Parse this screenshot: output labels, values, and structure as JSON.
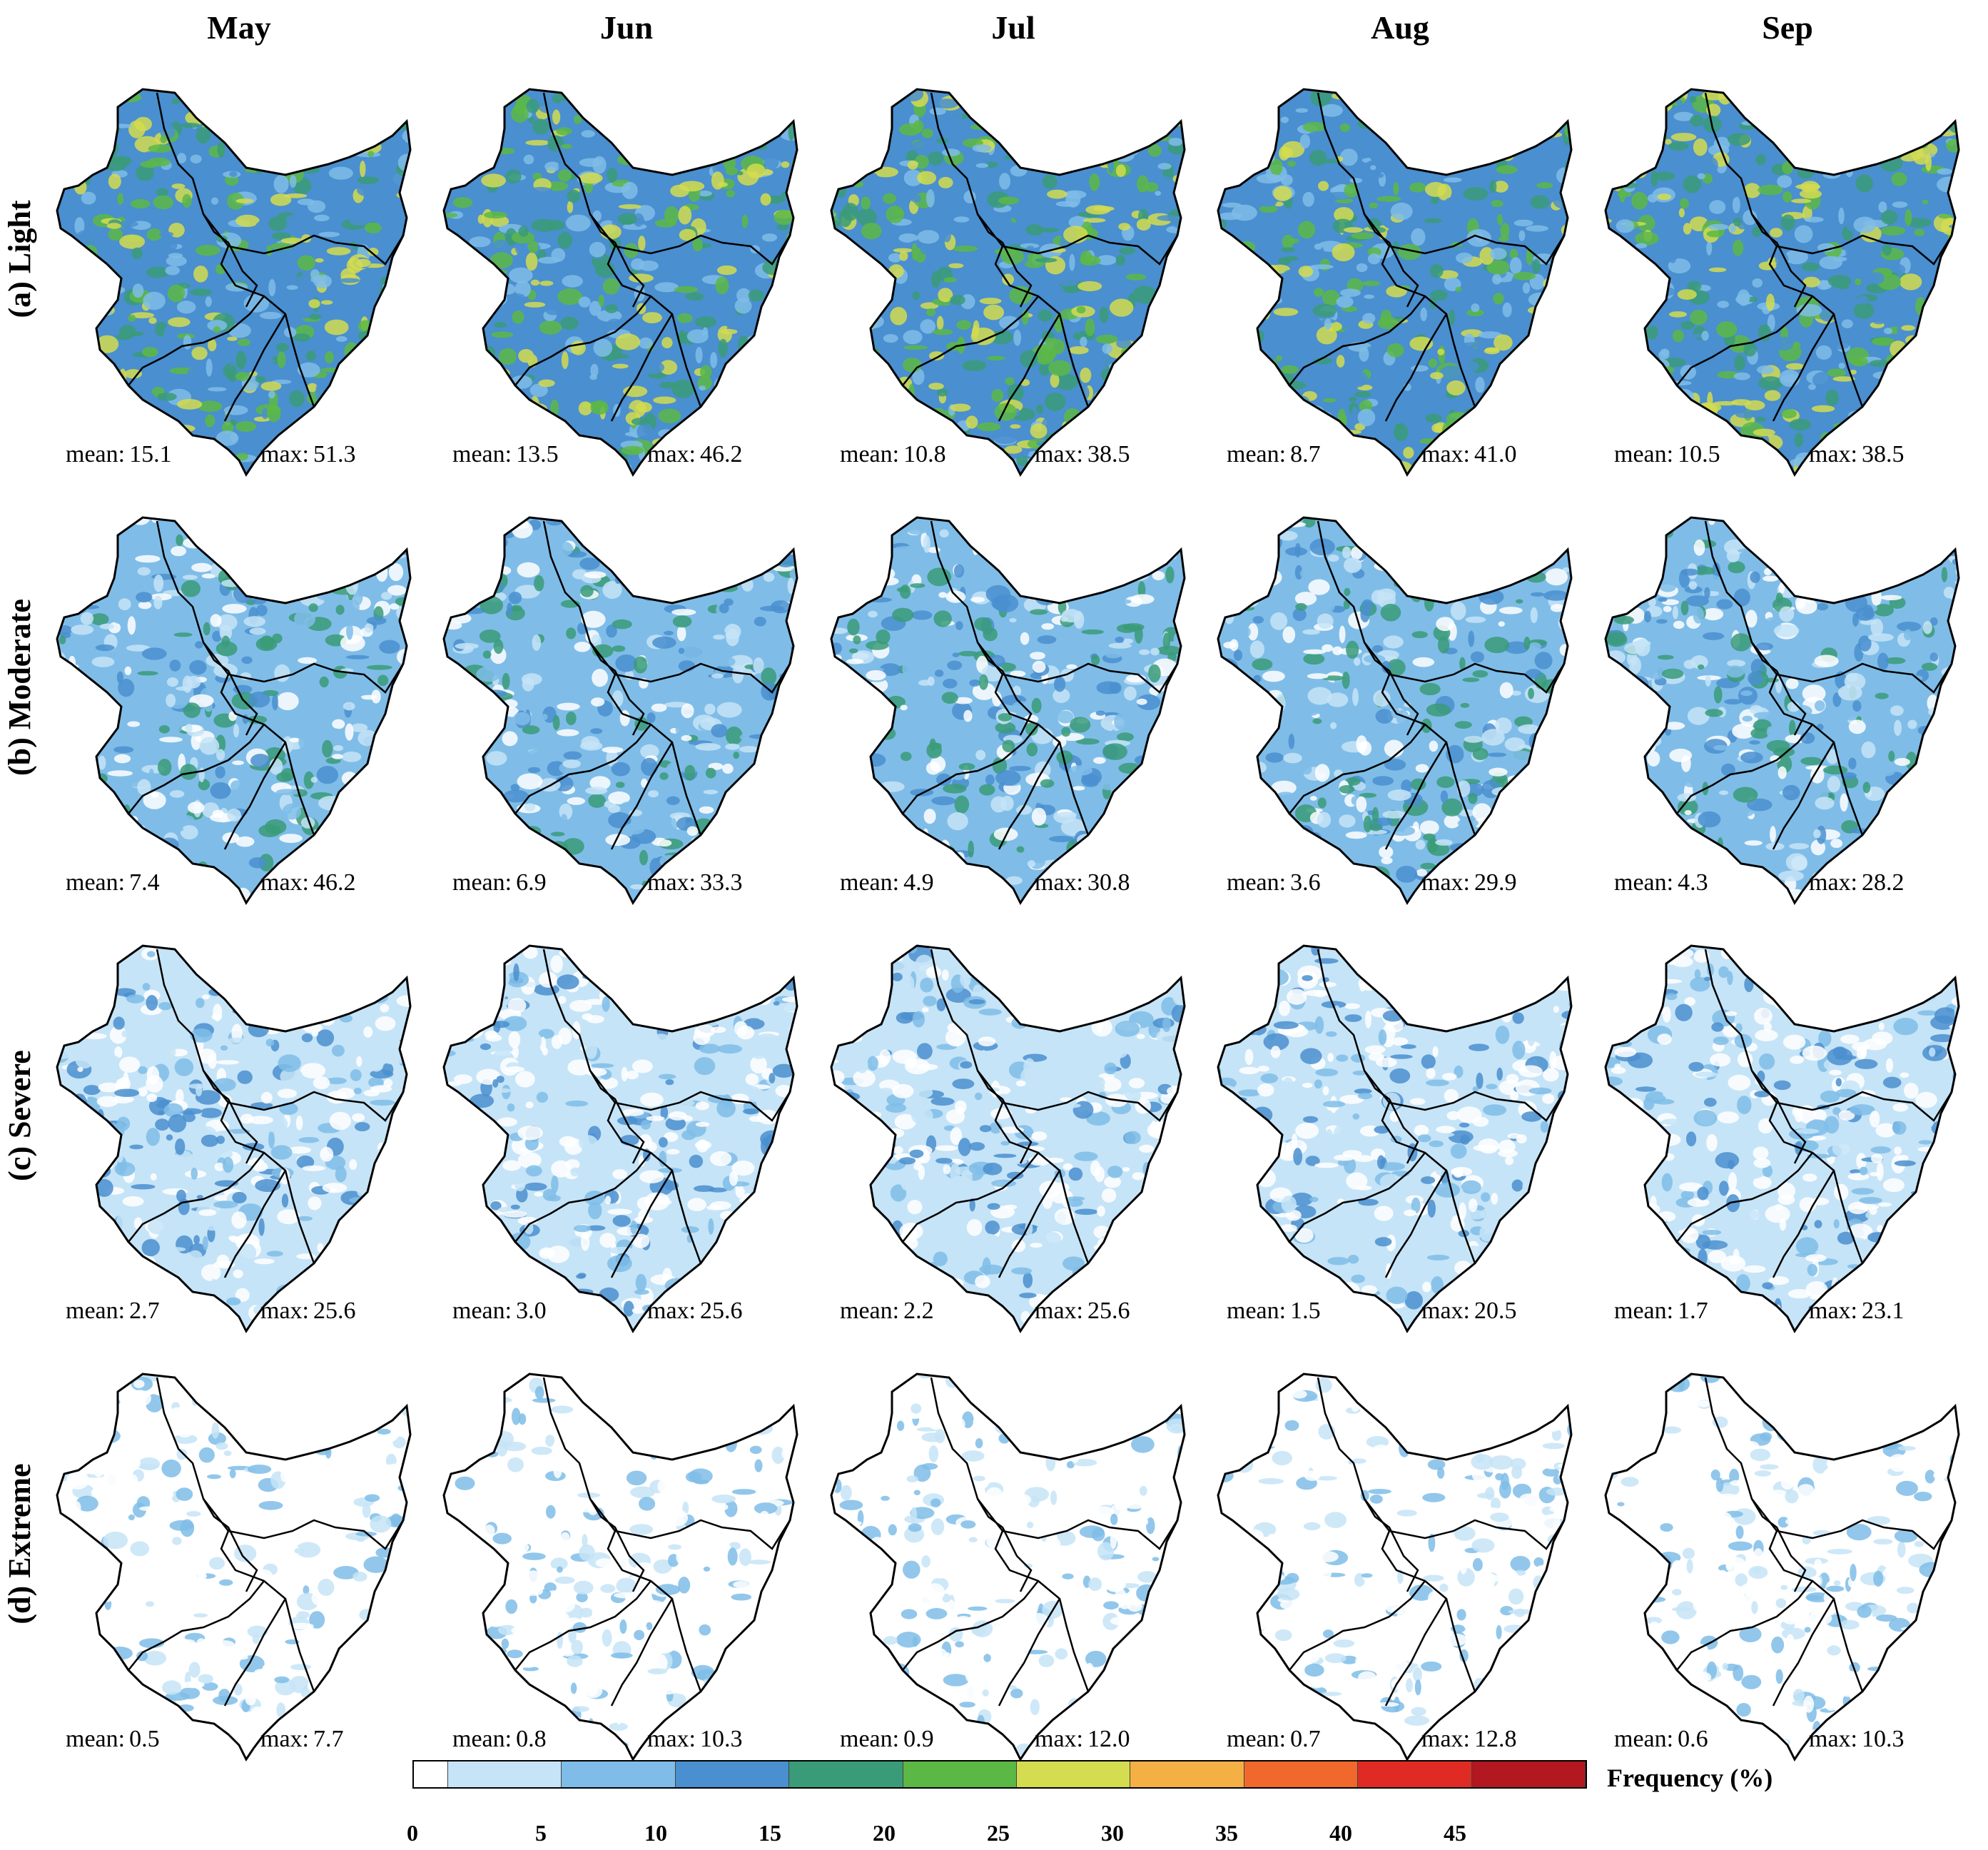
{
  "columns": [
    "May",
    "Jun",
    "Jul",
    "Aug",
    "Sep"
  ],
  "rows": [
    {
      "label": "(a) Light",
      "stats": [
        {
          "mean": "15.1",
          "max": "51.3"
        },
        {
          "mean": "13.5",
          "max": "46.2"
        },
        {
          "mean": "10.8",
          "max": "38.5"
        },
        {
          "mean": "8.7",
          "max": "41.0"
        },
        {
          "mean": "10.5",
          "max": "38.5"
        }
      ]
    },
    {
      "label": "(b) Moderate",
      "stats": [
        {
          "mean": "7.4",
          "max": "46.2"
        },
        {
          "mean": "6.9",
          "max": "33.3"
        },
        {
          "mean": "4.9",
          "max": "30.8"
        },
        {
          "mean": "3.6",
          "max": "29.9"
        },
        {
          "mean": "4.3",
          "max": "28.2"
        }
      ]
    },
    {
      "label": "(c) Severe",
      "stats": [
        {
          "mean": "2.7",
          "max": "25.6"
        },
        {
          "mean": "3.0",
          "max": "25.6"
        },
        {
          "mean": "2.2",
          "max": "25.6"
        },
        {
          "mean": "1.5",
          "max": "20.5"
        },
        {
          "mean": "1.7",
          "max": "23.1"
        }
      ]
    },
    {
      "label": "(d) Extreme",
      "stats": [
        {
          "mean": "0.5",
          "max": "7.7"
        },
        {
          "mean": "0.8",
          "max": "10.3"
        },
        {
          "mean": "0.9",
          "max": "12.0"
        },
        {
          "mean": "0.7",
          "max": "12.8"
        },
        {
          "mean": "0.6",
          "max": "10.3"
        }
      ]
    }
  ],
  "stat_labels": {
    "mean": "mean:",
    "max": "max:"
  },
  "legend": {
    "title": "Frequency (%)",
    "ticks": [
      "0",
      "5",
      "10",
      "15",
      "20",
      "25",
      "30",
      "35",
      "40",
      "45"
    ],
    "colors": [
      "#ffffff",
      "#c6e4f7",
      "#7fbde8",
      "#4a8fcf",
      "#3a9b78",
      "#5cb845",
      "#d4dc4f",
      "#f4b045",
      "#f0682c",
      "#e02a24",
      "#b3171f"
    ]
  }
}
